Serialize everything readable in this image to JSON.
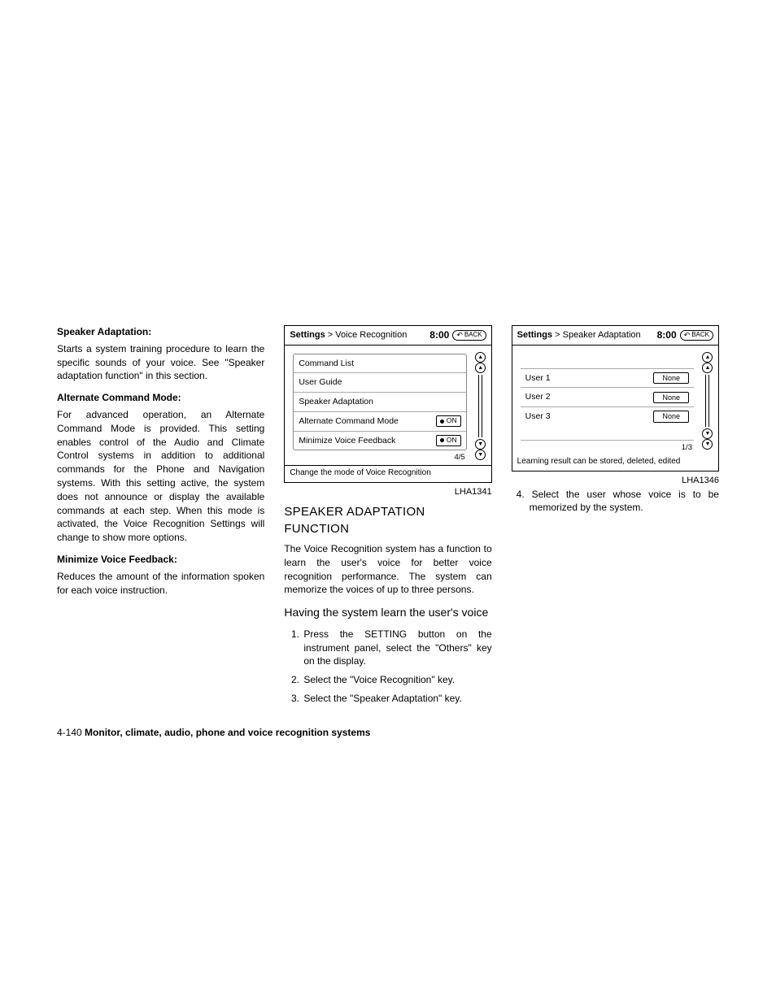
{
  "col1": {
    "h1": "Speaker Adaptation:",
    "p1": "Starts a system training procedure to learn the specific sounds of your voice. See \"Speaker adaptation function\" in this section.",
    "h2": "Alternate Command Mode:",
    "p2": "For advanced operation, an Alternate Command Mode is provided. This setting enables control of the Audio and Climate Control systems in addition to additional commands for the Phone and Navigation systems. With this setting active, the system does not announce or display the available commands at each step. When this mode is activated, the Voice Recognition Settings will change to show more options.",
    "h3": "Minimize Voice Feedback:",
    "p3": "Reduces the amount of the information spoken for each voice instruction."
  },
  "fig1": {
    "breadcrumb_root": "Settings",
    "breadcrumb_sep": " > ",
    "breadcrumb_leaf": "Voice Recognition",
    "clock": "8:00",
    "back": "BACK",
    "rows": {
      "r0": "Command List",
      "r1": "User Guide",
      "r2": "Speaker Adaptation",
      "r3": "Alternate Command Mode",
      "r4": "Minimize Voice Feedback"
    },
    "toggle": "ON",
    "pager": "4/5",
    "hint": "Change the mode of Voice Recognition",
    "ref": "LHA1341"
  },
  "col2": {
    "heading": "SPEAKER ADAPTATION FUNCTION",
    "p1": "The Voice Recognition system has a function to learn the user's voice for better voice recognition performance. The system can memorize the voices of up to three persons.",
    "sub": "Having the system learn the user's voice",
    "s1": "Press the SETTING button on the instrument panel, select the \"Others\" key on the display.",
    "s2": "Select the \"Voice Recognition\" key.",
    "s3": "Select the \"Speaker Adaptation\" key."
  },
  "fig2": {
    "breadcrumb_root": "Settings",
    "breadcrumb_sep": " > ",
    "breadcrumb_leaf": "Speaker Adaptation",
    "clock": "8:00",
    "back": "BACK",
    "users": {
      "u1": "User 1",
      "u2": "User 2",
      "u3": "User 3"
    },
    "val": "None",
    "pager": "1/3",
    "hint": "Learning result can be stored, deleted, edited",
    "ref": "LHA1346"
  },
  "col3": {
    "s4": "4.  Select the user whose voice is to be memorized by the system."
  },
  "footer": {
    "pagenum": "4-140",
    "title": "Monitor, climate, audio, phone and voice recognition systems"
  }
}
